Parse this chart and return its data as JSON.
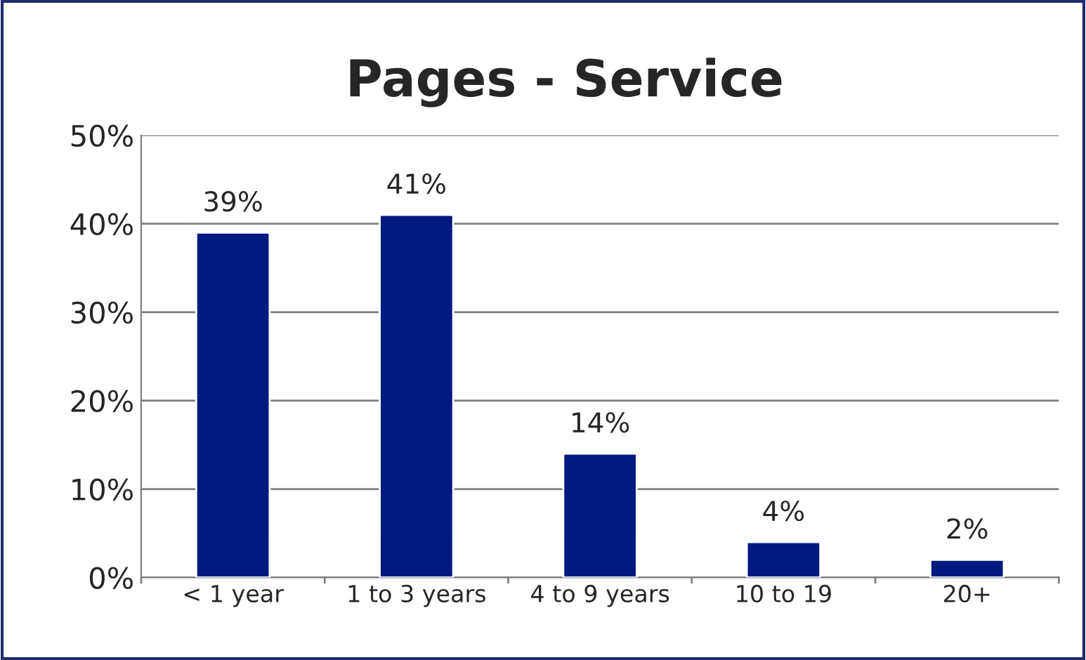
{
  "chart_data": {
    "type": "bar",
    "title": "Pages - Service",
    "categories": [
      "< 1 year",
      "1 to 3 years",
      "4 to 9 years",
      "10 to 19",
      "20+"
    ],
    "values": [
      39,
      41,
      14,
      4,
      2
    ],
    "color": "#001a80",
    "ylim": [
      0,
      50
    ],
    "yticks": [
      {
        "value": 0,
        "label": "0%"
      },
      {
        "value": 10,
        "label": "10%"
      },
      {
        "value": 20,
        "label": "20%"
      },
      {
        "value": 30,
        "label": "30%"
      },
      {
        "value": 40,
        "label": "40%"
      },
      {
        "value": 50,
        "label": "50%"
      }
    ],
    "value_labels": [
      "39%",
      "41%",
      "14%",
      "4%",
      "2%"
    ],
    "grid": "y",
    "legend": false
  }
}
